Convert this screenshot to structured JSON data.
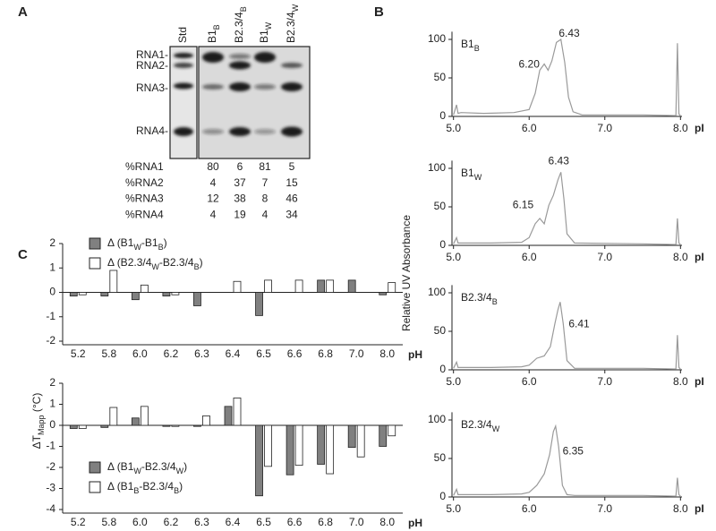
{
  "panel_a": {
    "label": "A",
    "std": "Std",
    "lanes": [
      [
        "B1",
        "B"
      ],
      [
        "B2.3/4",
        "B"
      ],
      [
        "B1",
        "W"
      ],
      [
        "B2.3/4",
        "W"
      ]
    ],
    "markers": [
      "RNA1-",
      "RNA2-",
      "RNA3-",
      "RNA4-"
    ],
    "table": {
      "rows": [
        [
          "%RNA1",
          80,
          6,
          81,
          5
        ],
        [
          "%RNA2",
          4,
          37,
          7,
          15
        ],
        [
          "%RNA3",
          12,
          38,
          8,
          46
        ],
        [
          "%RNA4",
          4,
          19,
          4,
          34
        ]
      ]
    }
  },
  "panel_b": {
    "label": "B",
    "ylabel": "Relative UV Absorbance"
  },
  "panel_c": {
    "label": "C",
    "ylabel": [
      "ΔT",
      "Mapp",
      " (°C)"
    ]
  },
  "chart_data": [
    {
      "type": "line",
      "title": [
        "B1",
        "B"
      ],
      "x": [
        5.0,
        5.04,
        5.06,
        5.1,
        5.4,
        5.8,
        6.0,
        6.08,
        6.14,
        6.2,
        6.25,
        6.3,
        6.36,
        6.42,
        6.47,
        6.52,
        6.58,
        6.7,
        7.5,
        7.94,
        7.96,
        7.98,
        8.0
      ],
      "series": [
        {
          "color": "#9a9a9a",
          "values": [
            2,
            15,
            4,
            5,
            4,
            5,
            9,
            30,
            60,
            68,
            60,
            72,
            96,
            100,
            70,
            25,
            6,
            2,
            2,
            1,
            95,
            3,
            1
          ]
        }
      ],
      "annotations": [
        {
          "text": "6.20",
          "x": 6.0,
          "y": 67
        },
        {
          "text": "6.43",
          "x": 6.53,
          "y": 107
        }
      ],
      "xlim": [
        4.98,
        8.02
      ],
      "ylim": [
        0,
        110
      ],
      "xticks": [
        {
          "value": 5,
          "label": "5.0"
        },
        {
          "value": 6,
          "label": "6.0"
        },
        {
          "value": 7,
          "label": "7.0"
        },
        {
          "value": 8,
          "label": "8.0"
        }
      ],
      "yticks": [
        0,
        50,
        100
      ],
      "xlabel": "pI"
    },
    {
      "type": "line",
      "title": [
        "B1",
        "W"
      ],
      "x": [
        5.0,
        5.04,
        5.06,
        5.1,
        5.5,
        5.9,
        6.0,
        6.08,
        6.14,
        6.2,
        6.26,
        6.32,
        6.38,
        6.42,
        6.46,
        6.5,
        6.6,
        7.5,
        7.94,
        7.96,
        7.98,
        8.0
      ],
      "series": [
        {
          "color": "#9a9a9a",
          "values": [
            2,
            10,
            3,
            3,
            3,
            4,
            10,
            28,
            35,
            28,
            52,
            65,
            85,
            95,
            60,
            15,
            3,
            2,
            1,
            35,
            3,
            1
          ]
        }
      ],
      "annotations": [
        {
          "text": "6.15",
          "x": 5.92,
          "y": 52
        },
        {
          "text": "6.43",
          "x": 6.39,
          "y": 109
        }
      ],
      "xlim": [
        4.98,
        8.02
      ],
      "ylim": [
        0,
        110
      ],
      "xticks": [
        {
          "value": 5,
          "label": "5.0"
        },
        {
          "value": 6,
          "label": "6.0"
        },
        {
          "value": 7,
          "label": "7.0"
        },
        {
          "value": 8,
          "label": "8.0"
        }
      ],
      "yticks": [
        0,
        50,
        100
      ],
      "xlabel": "pI"
    },
    {
      "type": "line",
      "title": [
        "B2.3/4",
        "B"
      ],
      "x": [
        5.0,
        5.04,
        5.06,
        5.1,
        5.5,
        5.9,
        6.0,
        6.1,
        6.2,
        6.28,
        6.34,
        6.38,
        6.41,
        6.45,
        6.5,
        6.6,
        7.5,
        7.94,
        7.96,
        7.98,
        8.0
      ],
      "series": [
        {
          "color": "#9a9a9a",
          "values": [
            2,
            10,
            3,
            3,
            3,
            4,
            6,
            15,
            18,
            30,
            60,
            78,
            88,
            60,
            12,
            2,
            2,
            1,
            45,
            3,
            1
          ]
        }
      ],
      "annotations": [
        {
          "text": "6.41",
          "x": 6.66,
          "y": 59
        }
      ],
      "xlim": [
        4.98,
        8.02
      ],
      "ylim": [
        0,
        110
      ],
      "xticks": [
        {
          "value": 5,
          "label": "5.0"
        },
        {
          "value": 6,
          "label": "6.0"
        },
        {
          "value": 7,
          "label": "7.0"
        },
        {
          "value": 8,
          "label": "8.0"
        }
      ],
      "yticks": [
        0,
        50,
        100
      ],
      "xlabel": "pI"
    },
    {
      "type": "line",
      "title": [
        "B2.3/4",
        "W"
      ],
      "x": [
        5.0,
        5.04,
        5.06,
        5.1,
        5.5,
        5.9,
        6.0,
        6.1,
        6.2,
        6.27,
        6.32,
        6.35,
        6.39,
        6.44,
        6.5,
        6.6,
        7.5,
        7.94,
        7.96,
        7.98,
        8.0
      ],
      "series": [
        {
          "color": "#9a9a9a",
          "values": [
            2,
            10,
            3,
            3,
            3,
            4,
            6,
            15,
            30,
            55,
            85,
            92,
            65,
            15,
            3,
            2,
            2,
            1,
            25,
            3,
            1
          ]
        }
      ],
      "annotations": [
        {
          "text": "6.35",
          "x": 6.58,
          "y": 59
        }
      ],
      "xlim": [
        4.98,
        8.02
      ],
      "ylim": [
        0,
        110
      ],
      "xticks": [
        {
          "value": 5,
          "label": "5.0"
        },
        {
          "value": 6,
          "label": "6.0"
        },
        {
          "value": 7,
          "label": "7.0"
        },
        {
          "value": 8,
          "label": "8.0"
        }
      ],
      "yticks": [
        0,
        50,
        100
      ],
      "xlabel": "pI"
    },
    {
      "type": "bar",
      "categories": [
        "5.2",
        "5.8",
        "6.0",
        "6.2",
        "6.3",
        "6.4",
        "6.5",
        "6.6",
        "6.8",
        "7.0",
        "8.0"
      ],
      "series": [
        {
          "name": [
            "Δ (B1",
            "W",
            "-B1",
            "B",
            ")"
          ],
          "color": "#808080",
          "values": [
            -0.15,
            -0.15,
            -0.3,
            -0.15,
            -0.55,
            0,
            -0.95,
            0,
            0.5,
            0.5,
            -0.1
          ]
        },
        {
          "name": [
            "Δ (B2.3/4",
            "W",
            "-B2.3/4",
            "B",
            ")"
          ],
          "color": "#ffffff",
          "values": [
            -0.1,
            0.9,
            0.3,
            -0.1,
            0,
            0.45,
            0.5,
            0.5,
            0.5,
            0,
            0.4
          ]
        }
      ],
      "ylim": [
        -2,
        2
      ],
      "yticks": [
        -2,
        -1,
        0,
        1,
        2
      ],
      "xlabel": "pH",
      "legend": "upper left"
    },
    {
      "type": "bar",
      "categories": [
        "5.2",
        "5.8",
        "6.0",
        "6.2",
        "6.3",
        "6.4",
        "6.5",
        "6.6",
        "6.8",
        "7.0",
        "8.0"
      ],
      "series": [
        {
          "name": [
            "Δ (B1",
            "W",
            "-B2.3/4",
            "W",
            ")"
          ],
          "color": "#808080",
          "values": [
            -0.15,
            -0.1,
            0.35,
            -0.05,
            -0.05,
            0.9,
            -3.35,
            -2.35,
            -1.85,
            -1.05,
            -1.0
          ]
        },
        {
          "name": [
            "Δ (B1",
            "B",
            "-B2.3/4",
            "B",
            ")"
          ],
          "color": "#ffffff",
          "values": [
            -0.15,
            0.85,
            0.9,
            -0.05,
            0.45,
            1.3,
            -1.95,
            -1.9,
            -2.3,
            -1.5,
            -0.5
          ]
        }
      ],
      "ylim": [
        -4,
        2
      ],
      "yticks": [
        -4,
        -3,
        -2,
        -1,
        0,
        1,
        2
      ],
      "xlabel": "pH",
      "legend": "lower left"
    }
  ]
}
